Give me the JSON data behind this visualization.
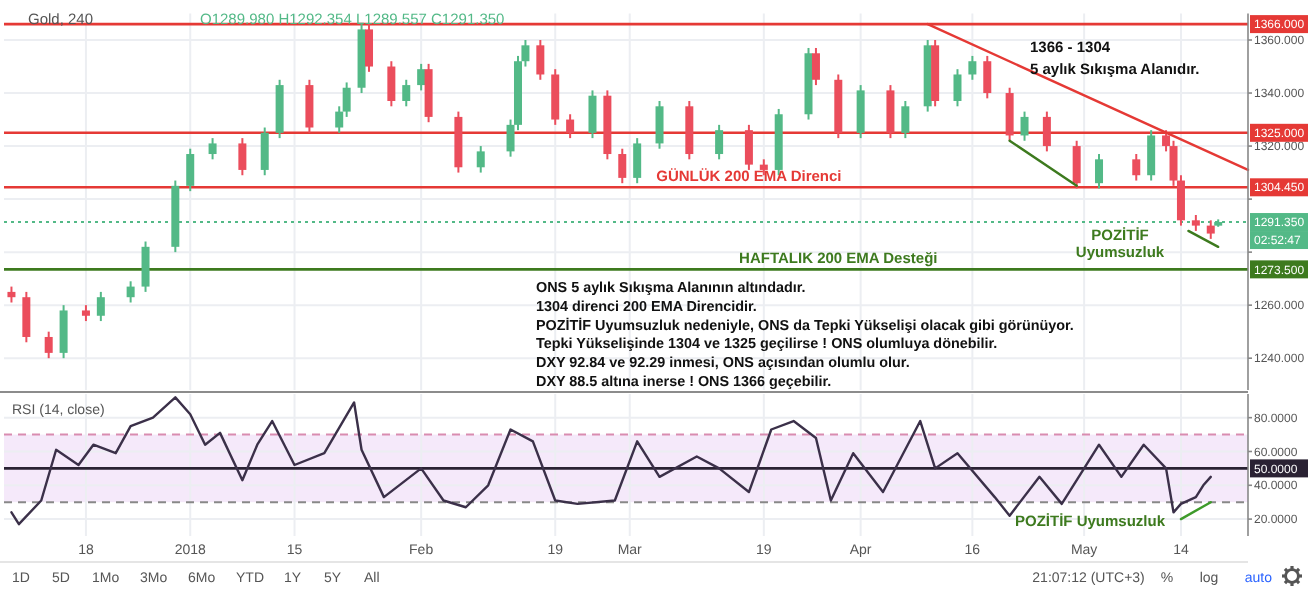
{
  "chart_data": [
    {
      "type": "candlestick",
      "title": "Gold, 240",
      "subtitle": "O1289.980 H1292.354 L1289.557 C1291.350",
      "x": [
        "2017-12-08",
        "2017-12-10",
        "2017-12-13",
        "2017-12-15",
        "2017-12-18",
        "2017-12-20",
        "2017-12-24",
        "2017-12-26",
        "2017-12-30",
        "2018-01-01",
        "2018-01-04",
        "2018-01-08",
        "2018-01-11",
        "2018-01-13",
        "2018-01-17",
        "2018-01-21",
        "2018-01-22",
        "2018-01-24",
        "2018-01-25",
        "2018-01-28",
        "2018-01-30",
        "2018-02-01",
        "2018-02-02",
        "2018-02-06",
        "2018-02-09",
        "2018-02-13",
        "2018-02-14",
        "2018-02-15",
        "2018-02-17",
        "2018-02-19",
        "2018-02-21",
        "2018-02-24",
        "2018-02-26",
        "2018-02-28",
        "2018-03-02",
        "2018-03-05",
        "2018-03-09",
        "2018-03-13",
        "2018-03-17",
        "2018-03-19",
        "2018-03-21",
        "2018-03-25",
        "2018-03-26",
        "2018-03-29",
        "2018-04-01",
        "2018-04-05",
        "2018-04-07",
        "2018-04-10",
        "2018-04-11",
        "2018-04-14",
        "2018-04-16",
        "2018-04-18",
        "2018-04-21",
        "2018-04-23",
        "2018-04-26",
        "2018-04-30",
        "2018-05-03",
        "2018-05-08",
        "2018-05-10",
        "2018-05-12",
        "2018-05-13",
        "2018-05-14",
        "2018-05-16",
        "2018-05-18",
        "2018-05-19"
      ],
      "ohlc": [
        [
          1265,
          1267,
          1261,
          1263
        ],
        [
          1263,
          1265,
          1246,
          1248
        ],
        [
          1248,
          1250,
          1240,
          1242
        ],
        [
          1242,
          1260,
          1240,
          1258
        ],
        [
          1258,
          1260,
          1254,
          1256
        ],
        [
          1256,
          1265,
          1254,
          1263
        ],
        [
          1263,
          1269,
          1261,
          1267
        ],
        [
          1267,
          1284,
          1265,
          1282
        ],
        [
          1282,
          1307,
          1280,
          1305
        ],
        [
          1305,
          1319,
          1303,
          1317
        ],
        [
          1317,
          1323,
          1315,
          1321
        ],
        [
          1321,
          1323,
          1309,
          1311
        ],
        [
          1311,
          1327,
          1309,
          1325
        ],
        [
          1325,
          1345,
          1323,
          1343
        ],
        [
          1343,
          1345,
          1325,
          1327
        ],
        [
          1327,
          1335,
          1325,
          1333
        ],
        [
          1333,
          1344,
          1331,
          1342
        ],
        [
          1342,
          1366,
          1340,
          1364
        ],
        [
          1364,
          1366,
          1348,
          1350
        ],
        [
          1350,
          1352,
          1335,
          1337
        ],
        [
          1337,
          1345,
          1335,
          1343
        ],
        [
          1343,
          1351,
          1341,
          1349
        ],
        [
          1349,
          1351,
          1329,
          1331
        ],
        [
          1331,
          1333,
          1310,
          1312
        ],
        [
          1312,
          1320,
          1310,
          1318
        ],
        [
          1318,
          1330,
          1316,
          1328
        ],
        [
          1328,
          1354,
          1326,
          1352
        ],
        [
          1352,
          1360,
          1350,
          1358
        ],
        [
          1358,
          1360,
          1345,
          1347
        ],
        [
          1347,
          1349,
          1328,
          1330
        ],
        [
          1330,
          1332,
          1323,
          1325
        ],
        [
          1325,
          1341,
          1323,
          1339
        ],
        [
          1339,
          1341,
          1315,
          1317
        ],
        [
          1317,
          1319,
          1306,
          1308
        ],
        [
          1308,
          1323,
          1306,
          1321
        ],
        [
          1321,
          1337,
          1319,
          1335
        ],
        [
          1335,
          1337,
          1315,
          1317
        ],
        [
          1317,
          1328,
          1315,
          1326
        ],
        [
          1326,
          1328,
          1311,
          1313
        ],
        [
          1313,
          1315,
          1309,
          1311
        ],
        [
          1311,
          1334,
          1309,
          1332
        ],
        [
          1332,
          1357,
          1330,
          1355
        ],
        [
          1355,
          1357,
          1343,
          1345
        ],
        [
          1345,
          1347,
          1323,
          1325
        ],
        [
          1325,
          1343,
          1323,
          1341
        ],
        [
          1341,
          1343,
          1323,
          1325
        ],
        [
          1325,
          1337,
          1323,
          1335
        ],
        [
          1335,
          1360,
          1333,
          1358
        ],
        [
          1358,
          1360,
          1335,
          1337
        ],
        [
          1337,
          1349,
          1335,
          1347
        ],
        [
          1347,
          1354,
          1345,
          1352
        ],
        [
          1352,
          1354,
          1338,
          1340
        ],
        [
          1340,
          1342,
          1322,
          1324
        ],
        [
          1324,
          1333,
          1322,
          1331
        ],
        [
          1331,
          1333,
          1318,
          1320
        ],
        [
          1320,
          1322,
          1304,
          1306
        ],
        [
          1306,
          1317,
          1304,
          1315
        ],
        [
          1315,
          1317,
          1307,
          1309
        ],
        [
          1309,
          1326,
          1307,
          1324
        ],
        [
          1324,
          1326,
          1318,
          1320
        ],
        [
          1320,
          1322,
          1305,
          1307
        ],
        [
          1307,
          1309,
          1290,
          1292
        ],
        [
          1292,
          1294,
          1288,
          1290
        ],
        [
          1290,
          1292,
          1285,
          1287
        ],
        [
          1289.98,
          1292.354,
          1289.557,
          1291.35
        ]
      ],
      "series": [
        {
          "type": "line",
          "x": [
            "2018-04-10",
            "2018-05-23"
          ],
          "values": [
            1366,
            1311
          ],
          "color": "#e53935"
        },
        {
          "type": "line",
          "x": [
            "2018-04-21",
            "2018-04-30"
          ],
          "values": [
            1322,
            1305
          ],
          "color": "#3d7a1e"
        },
        {
          "type": "line",
          "x": [
            "2018-05-15",
            "2018-05-19"
          ],
          "values": [
            1288,
            1282
          ],
          "color": "#3d7a1e"
        }
      ],
      "xlim": [
        "2017-12-07",
        "2018-05-23"
      ],
      "xticks": [
        {
          "value": "2017-12-18",
          "label": null
        },
        {
          "value": "2018-01-01",
          "label": null
        },
        {
          "value": "2018-01-15",
          "label": null
        },
        {
          "value": "2018-02-01",
          "label": null
        },
        {
          "value": "2018-02-19",
          "label": null
        },
        {
          "value": "2018-03-01",
          "label": null
        },
        {
          "value": "2018-03-19",
          "label": null
        },
        {
          "value": "2018-04-01",
          "label": null
        },
        {
          "value": "2018-04-16",
          "label": null
        },
        {
          "value": "2018-05-01",
          "label": null
        },
        {
          "value": "2018-05-14",
          "label": null
        }
      ],
      "ylim": [
        1228,
        1370
      ],
      "yticks": [
        {
          "value": 1240,
          "label": "1240.000"
        },
        {
          "value": 1260,
          "label": "1260.000"
        },
        {
          "value": 1280,
          "label": null
        },
        {
          "value": 1300,
          "label": null
        },
        {
          "value": 1320,
          "label": "1320.000"
        },
        {
          "value": 1340,
          "label": "1340.000"
        },
        {
          "value": 1360,
          "label": "1360.000"
        }
      ],
      "ref_lines": [
        {
          "axis": "y",
          "value": 1366,
          "label": "1366.000",
          "color": "#e53935"
        },
        {
          "axis": "y",
          "value": 1325,
          "label": "1325.000",
          "color": "#e53935"
        },
        {
          "axis": "y",
          "value": 1304.45,
          "label": "1304.450",
          "color": "#e53935"
        },
        {
          "axis": "y",
          "value": 1291.35,
          "label": "1291.350",
          "color": "#53b987",
          "line_style": "dotted"
        },
        {
          "axis": "y",
          "value": 1273.5,
          "label": "1273.500",
          "color": "#3d7a1e"
        }
      ],
      "annotations": [
        "1366 - 1304",
        "5 aylık Sıkışma Alanıdır.",
        "ONS 5 aylık Sıkışma Alanının altındadır.",
        "1304 direnci 200 EMA Direncidir.",
        "POZİTİF Uyumsuzluk nedeniyle, ONS da Tepki Yükselişi olacak gibi  görünüyor.",
        "Tepki Yükselişinde 1304 ve 1325 geçilirse ! ONS olumluya dönebilir.",
        "DXY  92.84 ve 92.29 inmesi,  ONS açısından olumlu olur.",
        "DXY 88.5 altına inerse !  ONS  1366 geçebilir.",
        "02:52:47",
        {
          "text": "GÜNLÜK 200 EMA Direnci",
          "x": "2018-03-17",
          "y": 1304.45
        },
        {
          "text": "HAFTALIK 200 EMA Desteği",
          "x": "2018-03-29",
          "y": 1273.5
        },
        "POZİTİF Uyumsuzluk"
      ],
      "grid": true,
      "tick_labels": "y"
    },
    {
      "type": "line",
      "series": [
        {
          "x": [
            "2017-12-08",
            "2017-12-09",
            "2017-12-12",
            "2017-12-14",
            "2017-12-17",
            "2017-12-19",
            "2017-12-22",
            "2017-12-24",
            "2017-12-27",
            "2017-12-30",
            "2018-01-01",
            "2018-01-03",
            "2018-01-05",
            "2018-01-08",
            "2018-01-10",
            "2018-01-12",
            "2018-01-15",
            "2018-01-19",
            "2018-01-23",
            "2018-01-24",
            "2018-01-27",
            "2018-02-01",
            "2018-02-04",
            "2018-02-07",
            "2018-02-10",
            "2018-02-13",
            "2018-02-16",
            "2018-02-19",
            "2018-02-22",
            "2018-02-27",
            "2018-03-02",
            "2018-03-05",
            "2018-03-10",
            "2018-03-13",
            "2018-03-17",
            "2018-03-20",
            "2018-03-23",
            "2018-03-26",
            "2018-03-28",
            "2018-03-31",
            "2018-04-04",
            "2018-04-09",
            "2018-04-11",
            "2018-04-14",
            "2018-04-19",
            "2018-04-21",
            "2018-04-25",
            "2018-04-28",
            "2018-05-01",
            "2018-05-03",
            "2018-05-06",
            "2018-05-09",
            "2018-05-12",
            "2018-05-13",
            "2018-05-14",
            "2018-05-16",
            "2018-05-17",
            "2018-05-18"
          ],
          "values": [
            24,
            17,
            31,
            61,
            52,
            64,
            59,
            75,
            80,
            92,
            82,
            64,
            71,
            43,
            64,
            78,
            52,
            59,
            89,
            61,
            33,
            50,
            31,
            27,
            40,
            73,
            66,
            31,
            29,
            31,
            66,
            45,
            57,
            50,
            36,
            73,
            78,
            68,
            31,
            59,
            36,
            78,
            50,
            59,
            33,
            22,
            45,
            29,
            50,
            64,
            45,
            64,
            50,
            24,
            29,
            33,
            40,
            45
          ],
          "color": "#3b3049"
        },
        {
          "x": [
            "2018-05-14",
            "2018-05-18"
          ],
          "values": [
            20,
            30
          ],
          "color": "#3d9a2a"
        }
      ],
      "xlim": [
        "2017-12-07",
        "2018-05-23"
      ],
      "xticks": [
        {
          "value": "2017-12-18",
          "label": "18"
        },
        {
          "value": "2018-01-01",
          "label": "2018"
        },
        {
          "value": "2018-01-15",
          "label": "15"
        },
        {
          "value": "2018-02-01",
          "label": "Feb"
        },
        {
          "value": "2018-02-19",
          "label": "19"
        },
        {
          "value": "2018-03-01",
          "label": "Mar"
        },
        {
          "value": "2018-03-19",
          "label": "19"
        },
        {
          "value": "2018-04-01",
          "label": "Apr"
        },
        {
          "value": "2018-04-16",
          "label": "16"
        },
        {
          "value": "2018-05-01",
          "label": "May"
        },
        {
          "value": "2018-05-14",
          "label": "14"
        }
      ],
      "ylim": [
        10,
        94
      ],
      "yticks": [
        {
          "value": 20,
          "label": "20.0000"
        },
        {
          "value": 40,
          "label": "40.0000"
        },
        {
          "value": 60,
          "label": "60.0000"
        },
        {
          "value": 80,
          "label": "80.0000"
        }
      ],
      "bands": [
        {
          "axis": "y",
          "from": 30,
          "to": 70,
          "color": "#f5e9fa"
        }
      ],
      "ref_lines": [
        {
          "axis": "y",
          "value": 70,
          "color": "#d98cb0",
          "line_style": "dashed"
        },
        {
          "axis": "y",
          "value": 30,
          "color": "#888888",
          "line_style": "dashed"
        },
        {
          "axis": "y",
          "value": 50,
          "label": "50.0000",
          "color": "#2a2233"
        }
      ],
      "annotations": [
        "RSI (14, close)",
        "POZİTİF Uyumsuzluk",
        "1D",
        "5D",
        "1Mo",
        "3Mo",
        "6Mo",
        "YTD",
        "1Y",
        "5Y",
        "All",
        "21:07:12 (UTC+3)",
        "%",
        "log",
        "auto"
      ],
      "grid": true,
      "marker": "none",
      "line_style": "solid"
    }
  ]
}
